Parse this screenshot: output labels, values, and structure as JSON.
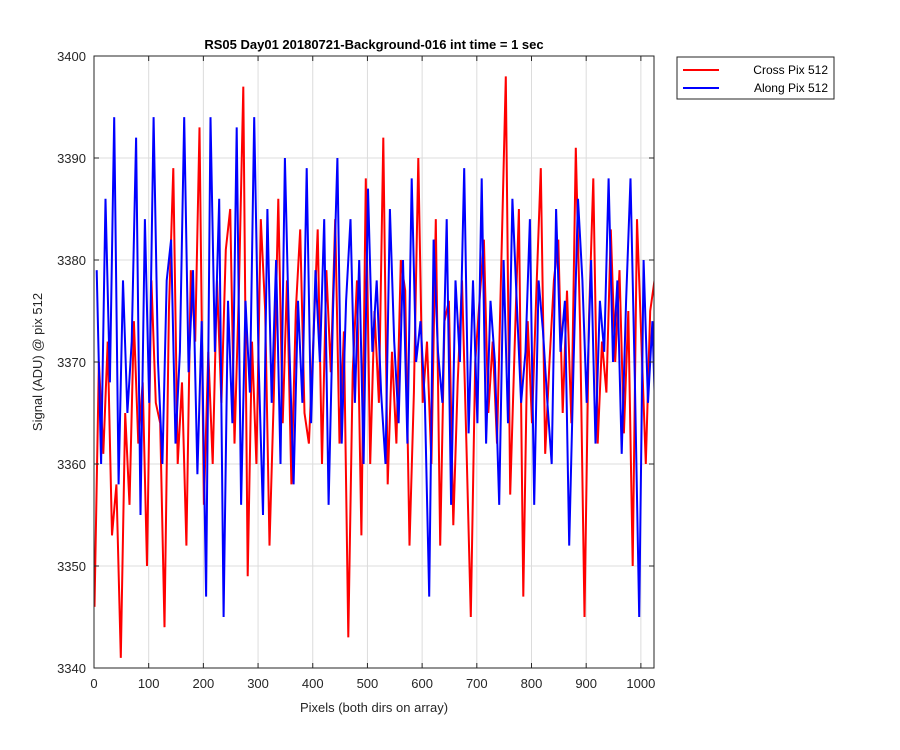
{
  "chart_data": {
    "type": "line",
    "title": "RS05 Day01 20180721-Background-016 int time = 1 sec",
    "xlabel": "Pixels (both dirs on array)",
    "ylabel": "Signal (ADU) @ pix 512",
    "xlim": [
      0,
      1024
    ],
    "ylim": [
      3340,
      3400
    ],
    "xticks": [
      0,
      100,
      200,
      300,
      400,
      500,
      600,
      700,
      800,
      900,
      1000
    ],
    "yticks": [
      3340,
      3350,
      3360,
      3370,
      3380,
      3390,
      3400
    ],
    "grid": true,
    "legend_position": "outside-top-right",
    "series": [
      {
        "name": "Cross Pix 512",
        "color": "#ff0000",
        "x_start": 1,
        "x_step": 8,
        "values": [
          3346,
          3370,
          3361,
          3372,
          3353,
          3358,
          3341,
          3365,
          3356,
          3374,
          3362,
          3368,
          3350,
          3378,
          3366,
          3364,
          3344,
          3375,
          3389,
          3360,
          3368,
          3352,
          3379,
          3372,
          3393,
          3356,
          3371,
          3360,
          3378,
          3366,
          3381,
          3385,
          3362,
          3377,
          3397,
          3349,
          3372,
          3360,
          3384,
          3375,
          3352,
          3367,
          3386,
          3364,
          3378,
          3358,
          3375,
          3383,
          3365,
          3362,
          3372,
          3383,
          3360,
          3379,
          3369,
          3384,
          3362,
          3373,
          3343,
          3369,
          3378,
          3353,
          3388,
          3360,
          3375,
          3366,
          3392,
          3358,
          3371,
          3362,
          3380,
          3377,
          3352,
          3367,
          3390,
          3366,
          3372,
          3360,
          3384,
          3352,
          3374,
          3376,
          3354,
          3368,
          3378,
          3362,
          3345,
          3370,
          3376,
          3382,
          3365,
          3372,
          3362,
          3380,
          3398,
          3357,
          3371,
          3385,
          3347,
          3374,
          3364,
          3377,
          3389,
          3361,
          3370,
          3378,
          3382,
          3365,
          3377,
          3364,
          3391,
          3373,
          3345,
          3374,
          3388,
          3362,
          3372,
          3367,
          3383,
          3370,
          3379,
          3363,
          3375,
          3350,
          3384,
          3372,
          3360,
          3375,
          3378,
          3380
        ]
      },
      {
        "name": "Along Pix 512",
        "color": "#0000ff",
        "x_start": 5,
        "x_step": 8,
        "values": [
          3379,
          3360,
          3386,
          3368,
          3394,
          3358,
          3378,
          3365,
          3372,
          3392,
          3355,
          3384,
          3366,
          3394,
          3370,
          3360,
          3378,
          3382,
          3362,
          3371,
          3394,
          3369,
          3379,
          3359,
          3374,
          3347,
          3394,
          3371,
          3386,
          3345,
          3376,
          3364,
          3393,
          3356,
          3376,
          3367,
          3394,
          3370,
          3355,
          3385,
          3366,
          3380,
          3360,
          3390,
          3372,
          3358,
          3376,
          3366,
          3389,
          3364,
          3379,
          3370,
          3384,
          3356,
          3375,
          3390,
          3362,
          3376,
          3384,
          3366,
          3380,
          3360,
          3387,
          3371,
          3378,
          3367,
          3360,
          3385,
          3372,
          3364,
          3380,
          3362,
          3388,
          3370,
          3374,
          3366,
          3347,
          3382,
          3371,
          3366,
          3384,
          3356,
          3378,
          3370,
          3389,
          3363,
          3378,
          3364,
          3388,
          3362,
          3376,
          3370,
          3356,
          3380,
          3364,
          3386,
          3376,
          3366,
          3371,
          3384,
          3356,
          3378,
          3373,
          3366,
          3360,
          3385,
          3371,
          3376,
          3352,
          3370,
          3386,
          3378,
          3366,
          3380,
          3362,
          3376,
          3371,
          3388,
          3370,
          3378,
          3361,
          3376,
          3388,
          3368,
          3345,
          3380,
          3366,
          3374,
          3360,
          3371
        ]
      }
    ]
  }
}
